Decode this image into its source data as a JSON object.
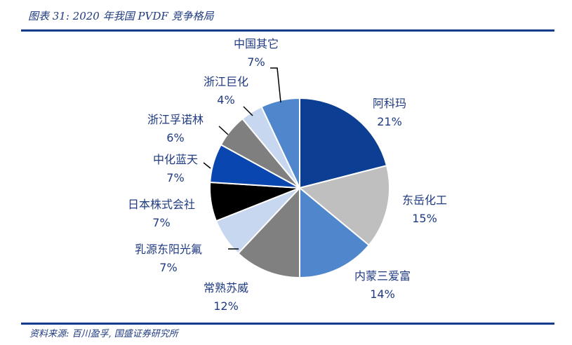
{
  "header": {
    "title": "图表 31:  2020 年我国 PVDF 竞争格局"
  },
  "footer": {
    "source": "资料来源:  百川盈孚,  国盛证券研究所"
  },
  "chart_data": {
    "type": "pie",
    "title": "2020 年我国 PVDF 竞争格局",
    "slices": [
      {
        "name": "阿科玛",
        "value": 21,
        "label": "21%",
        "color": "#0c3f93"
      },
      {
        "name": "东岳化工",
        "value": 15,
        "label": "15%",
        "color": "#bfbfbf"
      },
      {
        "name": "内蒙三爱富",
        "value": 14,
        "label": "14%",
        "color": "#4f86cc"
      },
      {
        "name": "常熟苏威",
        "value": 12,
        "label": "12%",
        "color": "#808080"
      },
      {
        "name": "乳源东阳光氟",
        "value": 7,
        "label": "7%",
        "color": "#c6d7ef"
      },
      {
        "name": "日本株式会社",
        "value": 7,
        "label": "7%",
        "color": "#000000"
      },
      {
        "name": "中化蓝天",
        "value": 7,
        "label": "7%",
        "color": "#0a46b0"
      },
      {
        "name": "浙江孚诺林",
        "value": 6,
        "label": "6%",
        "color": "#7f7f7f"
      },
      {
        "name": "浙江巨化",
        "value": 4,
        "label": "4%",
        "color": "#c6d7ef"
      },
      {
        "name": "中国其它",
        "value": 7,
        "label": "7%",
        "color": "#4f86cc"
      }
    ]
  }
}
